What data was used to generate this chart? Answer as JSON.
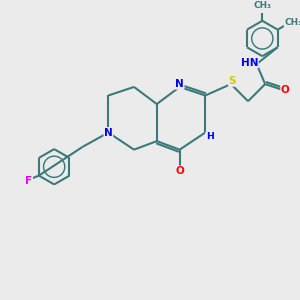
{
  "background_color": "#ebebeb",
  "bond_color": "#3c7a7a",
  "atom_colors": {
    "N": "#0000ee",
    "O": "#ff0000",
    "F": "#ee00ee",
    "S": "#cccc00",
    "C": "#3c7a7a"
  },
  "lw": 1.5,
  "fs": 7.5,
  "ring_r": 0.62,
  "xlim": [
    0,
    10
  ],
  "ylim": [
    0,
    10
  ]
}
